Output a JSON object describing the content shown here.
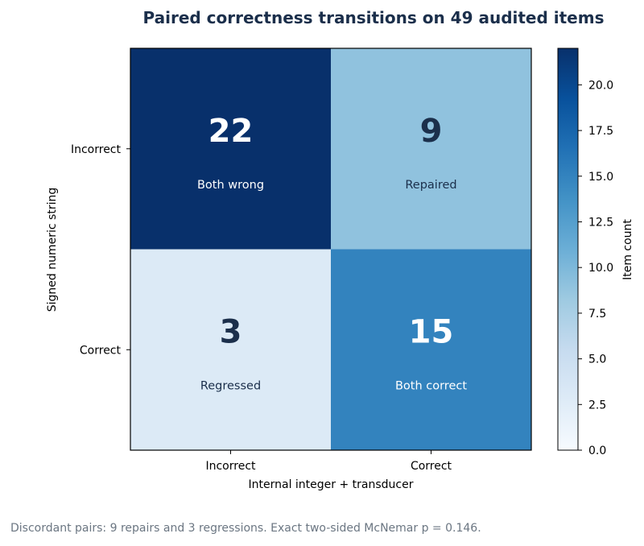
{
  "chart_data": {
    "type": "heatmap",
    "title": "Paired correctness transitions on 49 audited items",
    "xlabel": "Internal integer + transducer",
    "ylabel": "Signed numeric string",
    "x_categories": [
      "Incorrect",
      "Correct"
    ],
    "y_categories": [
      "Incorrect",
      "Correct"
    ],
    "values": [
      [
        22,
        9
      ],
      [
        3,
        15
      ]
    ],
    "cell_labels": [
      [
        "Both wrong",
        "Repaired"
      ],
      [
        "Regressed",
        "Both correct"
      ]
    ],
    "colorbar": {
      "label": "Item count",
      "range": [
        0,
        22
      ],
      "ticks": [
        "0.0",
        "2.5",
        "5.0",
        "7.5",
        "10.0",
        "12.5",
        "15.0",
        "17.5",
        "20.0"
      ],
      "colormap": "Blues"
    },
    "footnote": "Discordant pairs: 9 repairs and 3 regressions. Exact two-sided McNemar p = 0.146."
  }
}
